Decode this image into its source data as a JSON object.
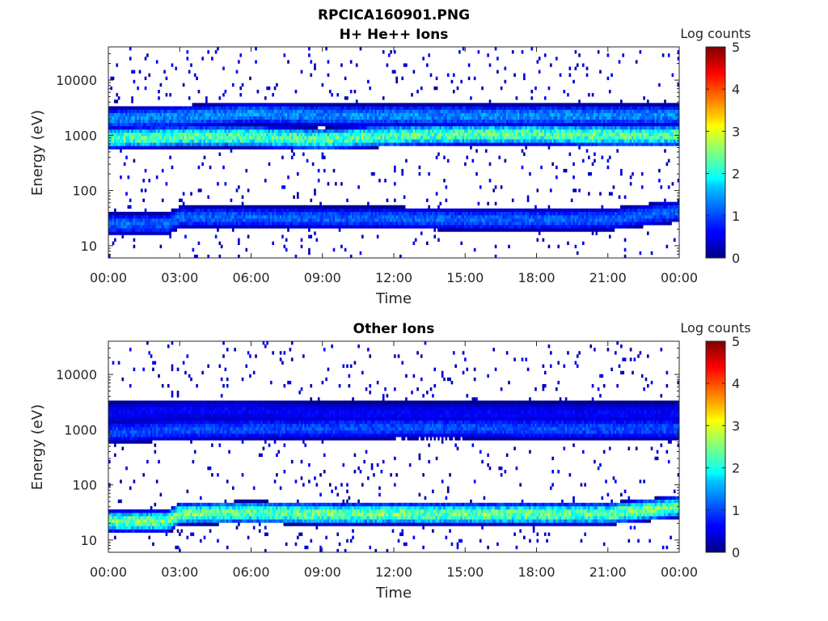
{
  "figure": {
    "title_line1": "RPCICA160901.PNG"
  },
  "chart_data": [
    {
      "type": "heatmap",
      "title": "H+ He++ Ions",
      "xlabel": "Time",
      "ylabel": "Energy (eV)",
      "x_ticks": [
        "00:00",
        "03:00",
        "06:00",
        "09:00",
        "12:00",
        "15:00",
        "18:00",
        "21:00",
        "00:00"
      ],
      "x_range_hours": [
        0,
        24
      ],
      "y_scale": "log",
      "y_range": [
        6,
        40000
      ],
      "y_ticks": [
        {
          "value": 10,
          "label": "10"
        },
        {
          "value": 100,
          "label": "100"
        },
        {
          "value": 1000,
          "label": "1000"
        },
        {
          "value": 10000,
          "label": "10000"
        }
      ],
      "colorbar": {
        "label": "Log counts",
        "range": [
          0,
          5
        ],
        "ticks": [
          "0",
          "1",
          "2",
          "3",
          "4",
          "5"
        ],
        "colormap": "jet"
      },
      "bands": [
        {
          "name": "",
          "center_eV_by_hour": [
            [
              0,
              900
            ],
            [
              3,
              950
            ],
            [
              6,
              950
            ],
            [
              9,
              850
            ],
            [
              12,
              1000
            ],
            [
              15,
              1050
            ],
            [
              18,
              1050
            ],
            [
              21,
              1000
            ],
            [
              24,
              1000
            ]
          ],
          "log_counts": 2.3
        },
        {
          "name": "",
          "center_eV_by_hour": [
            [
              0,
              2000
            ],
            [
              3,
              2200
            ],
            [
              6,
              2500
            ],
            [
              9,
              2300
            ],
            [
              12,
              2300
            ],
            [
              15,
              2300
            ],
            [
              18,
              2300
            ],
            [
              21,
              2300
            ],
            [
              24,
              2300
            ]
          ],
          "log_counts": 1.3
        },
        {
          "name": "",
          "center_eV_by_hour": [
            [
              0,
              25
            ],
            [
              2.5,
              25
            ],
            [
              3,
              33
            ],
            [
              6,
              33
            ],
            [
              9,
              32
            ],
            [
              12,
              32
            ],
            [
              15,
              30
            ],
            [
              18,
              30
            ],
            [
              21,
              30
            ],
            [
              24,
              42
            ]
          ],
          "log_counts": 1.1
        }
      ]
    },
    {
      "type": "heatmap",
      "title": "Other Ions",
      "xlabel": "Time",
      "ylabel": "Energy (eV)",
      "x_ticks": [
        "00:00",
        "03:00",
        "06:00",
        "09:00",
        "12:00",
        "15:00",
        "18:00",
        "21:00",
        "00:00"
      ],
      "x_range_hours": [
        0,
        24
      ],
      "y_scale": "log",
      "y_range": [
        6,
        40000
      ],
      "y_ticks": [
        {
          "value": 10,
          "label": "10"
        },
        {
          "value": 100,
          "label": "100"
        },
        {
          "value": 1000,
          "label": "1000"
        },
        {
          "value": 10000,
          "label": "10000"
        }
      ],
      "colorbar": {
        "label": "Log counts",
        "range": [
          0,
          5
        ],
        "ticks": [
          "0",
          "1",
          "2",
          "3",
          "4",
          "5"
        ],
        "colormap": "jet"
      },
      "bands": [
        {
          "name": "",
          "center_eV_by_hour": [
            [
              0,
              900
            ],
            [
              3,
              1000
            ],
            [
              6,
              1050
            ],
            [
              9,
              1050
            ],
            [
              12,
              1100
            ],
            [
              15,
              1100
            ],
            [
              18,
              1050
            ],
            [
              21,
              1050
            ],
            [
              24,
              1050
            ]
          ],
          "log_counts": 1.0
        },
        {
          "name": "",
          "center_eV_by_hour": [
            [
              0,
              2000
            ],
            [
              3,
              2200
            ],
            [
              6,
              2200
            ],
            [
              9,
              2000
            ]
          ],
          "log_counts": 0.6
        },
        {
          "name": "",
          "center_eV_by_hour": [
            [
              0,
              22
            ],
            [
              2.5,
              22
            ],
            [
              3,
              30
            ],
            [
              6,
              32
            ],
            [
              9,
              30
            ],
            [
              12,
              30
            ],
            [
              15,
              30
            ],
            [
              18,
              30
            ],
            [
              21,
              30
            ],
            [
              24,
              40
            ]
          ],
          "log_counts": 2.4
        }
      ]
    }
  ]
}
